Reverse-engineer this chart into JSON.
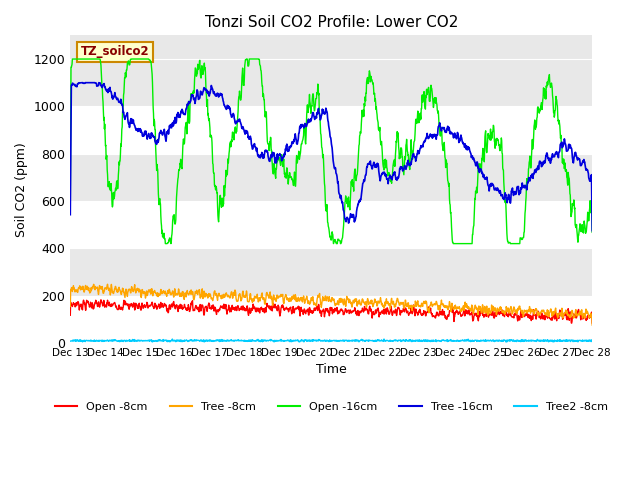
{
  "title": "Tonzi Soil CO2 Profile: Lower CO2",
  "ylabel": "Soil CO2 (ppm)",
  "xlabel": "Time",
  "legend_label": "TZ_soilco2",
  "series_labels": [
    "Open -8cm",
    "Tree -8cm",
    "Open -16cm",
    "Tree -16cm",
    "Tree2 -8cm"
  ],
  "series_colors": [
    "#ff0000",
    "#ffa500",
    "#00ee00",
    "#0000dd",
    "#00ccff"
  ],
  "ylim": [
    0,
    1300
  ],
  "plot_bg_color": "#e8e8e8",
  "band_color": "#d0d0d0",
  "x_start": 13,
  "x_end": 28,
  "yticks": [
    0,
    200,
    400,
    600,
    800,
    1000,
    1200
  ],
  "xtick_start": 13,
  "xtick_end": 28
}
